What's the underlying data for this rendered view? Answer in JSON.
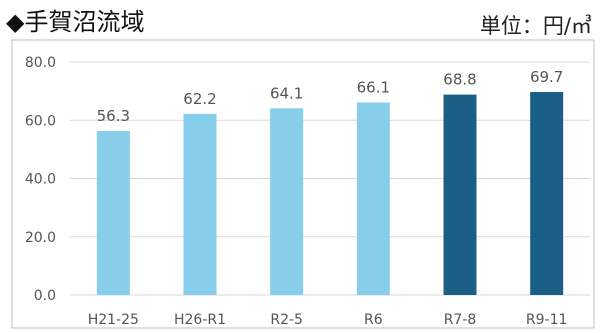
{
  "header": {
    "title": "◆手賀沼流域",
    "unit": "単位：円/㎥"
  },
  "colors": {
    "light_bar": "#87ceeb",
    "dark_bar": "#1b5f86",
    "grid": "#d9d9d9",
    "frame": "#bfbfbf"
  },
  "chart_data": {
    "type": "bar",
    "categories": [
      "H21-25",
      "H26-R1",
      "R2-5",
      "R6",
      "R7-8",
      "R9-11"
    ],
    "values": [
      56.3,
      62.2,
      64.1,
      66.1,
      68.8,
      69.7
    ],
    "value_labels": [
      "56.3",
      "62.2",
      "64.1",
      "66.1",
      "68.8",
      "69.7"
    ],
    "bar_color_keys": [
      "light",
      "light",
      "light",
      "light",
      "dark",
      "dark"
    ],
    "ylim": [
      0,
      80
    ],
    "yticks": [
      0,
      20,
      40,
      60,
      80
    ],
    "ytick_labels": [
      "0.0",
      "20.0",
      "40.0",
      "60.0",
      "80.0"
    ],
    "grid": true,
    "xlabel": "",
    "ylabel": ""
  }
}
